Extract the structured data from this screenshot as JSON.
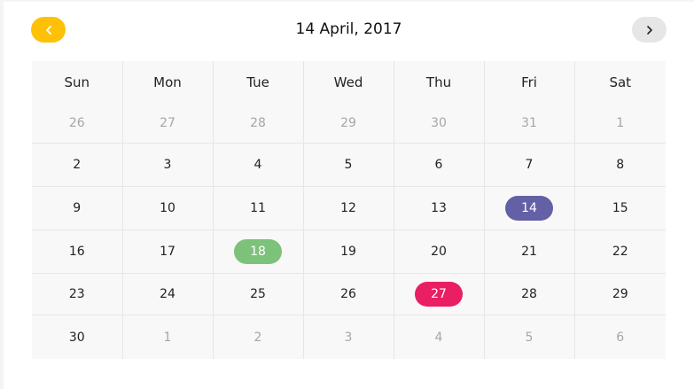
{
  "header": {
    "title": "14 April, 2017",
    "prev_icon": "chevron-left-icon",
    "next_icon": "chevron-right-icon",
    "prev_color": "#ffc107",
    "next_color": "#e6e6e6"
  },
  "weekdays": [
    "Sun",
    "Mon",
    "Tue",
    "Wed",
    "Thu",
    "Fri",
    "Sat"
  ],
  "weeks": [
    [
      {
        "label": "26",
        "muted": true
      },
      {
        "label": "27",
        "muted": true
      },
      {
        "label": "28",
        "muted": true
      },
      {
        "label": "29",
        "muted": true
      },
      {
        "label": "30",
        "muted": true
      },
      {
        "label": "31",
        "muted": true
      },
      {
        "label": "1",
        "muted": true
      }
    ],
    [
      {
        "label": "2"
      },
      {
        "label": "3"
      },
      {
        "label": "4"
      },
      {
        "label": "5"
      },
      {
        "label": "6"
      },
      {
        "label": "7"
      },
      {
        "label": "8"
      }
    ],
    [
      {
        "label": "9"
      },
      {
        "label": "10"
      },
      {
        "label": "11"
      },
      {
        "label": "12"
      },
      {
        "label": "13"
      },
      {
        "label": "14",
        "highlight": "#6460a6"
      },
      {
        "label": "15"
      }
    ],
    [
      {
        "label": "16"
      },
      {
        "label": "17"
      },
      {
        "label": "18",
        "highlight": "#7dc27a"
      },
      {
        "label": "19"
      },
      {
        "label": "20"
      },
      {
        "label": "21"
      },
      {
        "label": "22"
      }
    ],
    [
      {
        "label": "23"
      },
      {
        "label": "24"
      },
      {
        "label": "25"
      },
      {
        "label": "26"
      },
      {
        "label": "27",
        "highlight": "#e91e63"
      },
      {
        "label": "28"
      },
      {
        "label": "29"
      }
    ],
    [
      {
        "label": "30"
      },
      {
        "label": "1",
        "muted": true
      },
      {
        "label": "2",
        "muted": true
      },
      {
        "label": "3",
        "muted": true
      },
      {
        "label": "4",
        "muted": true
      },
      {
        "label": "5",
        "muted": true
      },
      {
        "label": "6",
        "muted": true
      }
    ]
  ]
}
